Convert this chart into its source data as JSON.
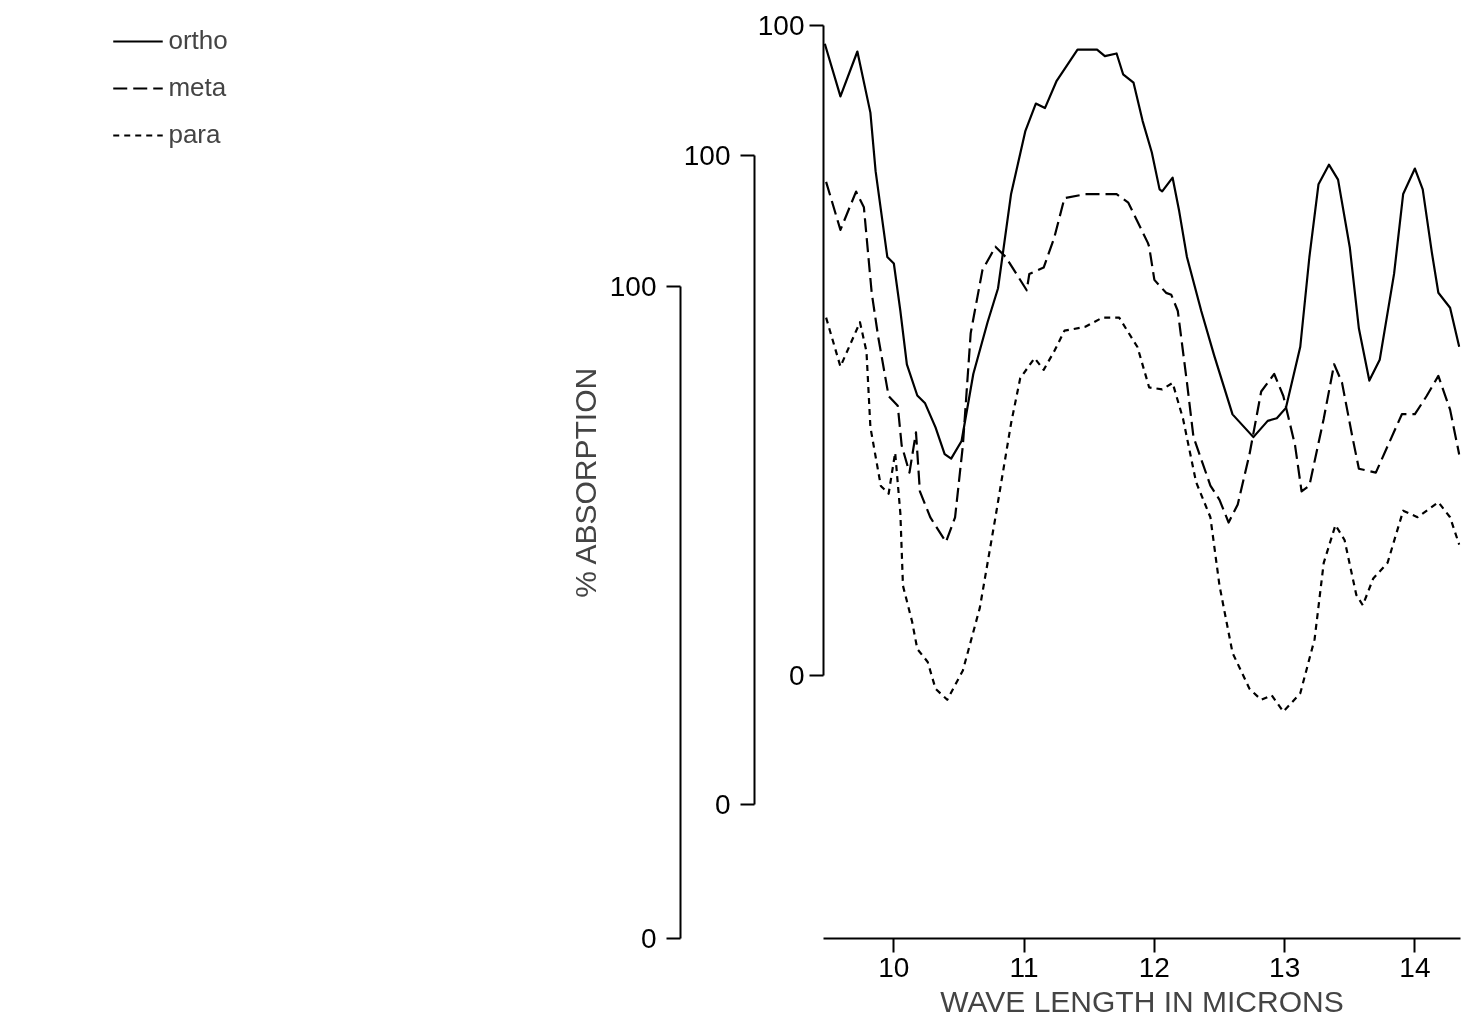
{
  "chart_data": {
    "type": "line",
    "xlabel": "WAVE LENGTH IN MICRONS",
    "y3label": "% ABSORPTION",
    "xlim": [
      9.46,
      14.35
    ],
    "xticks": [
      10,
      11,
      12,
      13,
      14
    ],
    "ylim": [
      -40.4,
      100
    ],
    "yticks": [
      0,
      100
    ],
    "y2lim": [
      -20.6,
      120.1
    ],
    "y2ticks": [
      0,
      100
    ],
    "y3lim": [
      0,
      140
    ],
    "y3ticks": [
      0,
      100
    ],
    "grid": false,
    "legend": "left",
    "marker": "none",
    "x": [
      9.47,
      9.59,
      9.72,
      9.82,
      9.86,
      9.95,
      10.0,
      10.05,
      10.1,
      10.18,
      10.24,
      10.32,
      10.39,
      10.44,
      10.52,
      10.61,
      10.72,
      10.8,
      10.9,
      11.01,
      11.09,
      11.16,
      11.25,
      11.41,
      11.56,
      11.62,
      11.71,
      11.76,
      11.84,
      11.91,
      11.98,
      12.04,
      12.06,
      12.14,
      12.19,
      12.25,
      12.36,
      12.46,
      12.6,
      12.76,
      12.87,
      12.94,
      13.01,
      13.12,
      13.19,
      13.26,
      13.34,
      13.41,
      13.5,
      13.57,
      13.65,
      13.73,
      13.84,
      13.91,
      14.0,
      14.06,
      14.13,
      14.18,
      14.27,
      14.34
    ],
    "series": [
      {
        "name": "ortho",
        "color": "#000000",
        "axis": "y",
        "line_style": "solid",
        "values": [
          97.2,
          89.1,
          96.0,
          86.6,
          77.6,
          64.4,
          63.4,
          56.1,
          47.9,
          43.1,
          41.9,
          38.2,
          34.1,
          33.4,
          36.1,
          46.4,
          54.4,
          59.6,
          74.1,
          83.8,
          88.0,
          87.3,
          91.5,
          96.3,
          96.3,
          95.3,
          95.7,
          92.5,
          91.2,
          85.3,
          80.5,
          74.8,
          74.5,
          76.6,
          71.5,
          64.4,
          56.1,
          49.2,
          40.2,
          36.7,
          39.2,
          39.6,
          41.2,
          50.6,
          64.4,
          75.6,
          78.6,
          76.3,
          65.9,
          53.4,
          45.4,
          48.6,
          61.8,
          74.1,
          78.0,
          74.8,
          65.1,
          58.9,
          56.6,
          50.6
        ]
      },
      {
        "name": "meta",
        "color": "#000000",
        "axis": "y2",
        "line_style": "dashed",
        "x": [
          9.48,
          9.59,
          9.71,
          9.77,
          9.83,
          9.88,
          9.96,
          10.03,
          10.06,
          10.12,
          10.17,
          10.2,
          10.28,
          10.4,
          10.47,
          10.53,
          10.59,
          10.68,
          10.78,
          10.86,
          11.02,
          11.04,
          11.15,
          11.23,
          11.31,
          11.47,
          11.71,
          11.8,
          11.95,
          11.96,
          12.0,
          12.09,
          12.13,
          12.18,
          12.25,
          12.3,
          12.43,
          12.5,
          12.57,
          12.64,
          12.73,
          12.82,
          12.92,
          12.99,
          13.08,
          13.13,
          13.19,
          13.3,
          13.38,
          13.44,
          13.52,
          13.57,
          13.7,
          13.9,
          14.0,
          14.09,
          14.18,
          14.27,
          14.34
        ],
        "values": [
          96.0,
          88.6,
          94.5,
          92.1,
          78.9,
          72.1,
          63.0,
          61.5,
          55.4,
          51.2,
          57.4,
          48.3,
          44.3,
          40.5,
          44.3,
          55.4,
          72.7,
          82.4,
          86.0,
          84.4,
          79.3,
          81.8,
          82.8,
          87.3,
          93.5,
          94.1,
          94.1,
          92.8,
          86.6,
          86.0,
          80.9,
          78.9,
          78.6,
          76.1,
          65.1,
          56.7,
          49.2,
          47.0,
          43.5,
          46.3,
          54.0,
          63.7,
          66.4,
          63.0,
          55.4,
          48.3,
          49.2,
          59.5,
          67.9,
          65.1,
          56.7,
          51.8,
          51.2,
          60.2,
          60.2,
          63.0,
          66.1,
          60.9,
          54.0
        ]
      },
      {
        "name": "para",
        "color": "#000000",
        "axis": "y3",
        "line_style": "dotted",
        "x": [
          9.48,
          9.59,
          9.74,
          9.79,
          9.82,
          9.9,
          9.96,
          10.01,
          10.05,
          10.07,
          10.14,
          10.18,
          10.26,
          10.32,
          10.41,
          10.53,
          10.66,
          10.78,
          10.9,
          10.97,
          11.08,
          11.15,
          11.23,
          11.31,
          11.47,
          11.6,
          11.73,
          11.87,
          11.96,
          12.06,
          12.14,
          12.22,
          12.32,
          12.43,
          12.5,
          12.6,
          12.73,
          12.82,
          12.9,
          12.99,
          13.12,
          13.23,
          13.3,
          13.39,
          13.46,
          13.55,
          13.6,
          13.68,
          13.79,
          13.91,
          14.02,
          14.18,
          14.27,
          14.34
        ],
        "values": [
          95.2,
          87.7,
          94.5,
          90.0,
          78.4,
          69.4,
          68.2,
          74.5,
          65.2,
          54.1,
          48.6,
          44.4,
          42.4,
          38.3,
          36.6,
          41.1,
          50.7,
          64.6,
          79.0,
          85.9,
          89.0,
          87.2,
          90.0,
          93.2,
          93.8,
          95.2,
          95.2,
          90.7,
          84.5,
          84.2,
          85.2,
          79.7,
          70.0,
          64.6,
          54.1,
          43.8,
          38.3,
          36.6,
          37.3,
          34.8,
          37.6,
          45.9,
          57.6,
          63.4,
          61.1,
          52.7,
          51.1,
          55.2,
          57.6,
          65.6,
          64.6,
          66.9,
          64.6,
          60.4
        ]
      }
    ]
  }
}
